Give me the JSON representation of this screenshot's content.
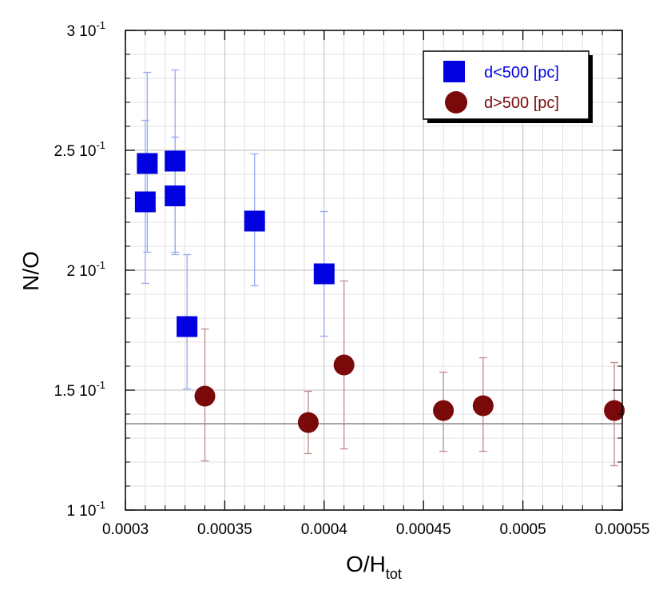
{
  "chart_data": {
    "type": "scatter",
    "xlabel": "O/H",
    "xlabel_sub": "tot",
    "ylabel": "N/O",
    "xlim": [
      0.0003,
      0.00055
    ],
    "ylim": [
      0.1,
      0.3
    ],
    "grid": true,
    "legend_position": "top-right",
    "x_ticks": [
      {
        "value": 0.0003,
        "label": "0.0003"
      },
      {
        "value": 0.00035,
        "label": "0.00035"
      },
      {
        "value": 0.0004,
        "label": "0.0004"
      },
      {
        "value": 0.00045,
        "label": "0.00045"
      },
      {
        "value": 0.0005,
        "label": "0.0005"
      },
      {
        "value": 0.00055,
        "label": "0.00055"
      }
    ],
    "y_ticks": [
      {
        "value": 0.1,
        "mantissa": "1",
        "exp": "-1"
      },
      {
        "value": 0.15,
        "mantissa": "1.5",
        "exp": "-1"
      },
      {
        "value": 0.2,
        "mantissa": "2",
        "exp": "-1"
      },
      {
        "value": 0.25,
        "mantissa": "2.5",
        "exp": "-1"
      },
      {
        "value": 0.3,
        "mantissa": "3",
        "exp": "-1"
      }
    ],
    "reference_line_y": 0.136,
    "series": [
      {
        "name": "d<500 [pc]",
        "marker": "square",
        "color": "#0000e0",
        "error_color": "#9aa8f0",
        "points": [
          {
            "x": 0.000311,
            "y": 0.2445,
            "err_lo": 0.2075,
            "err_hi": 0.2825
          },
          {
            "x": 0.00031,
            "y": 0.2285,
            "err_lo": 0.1945,
            "err_hi": 0.2625
          },
          {
            "x": 0.000325,
            "y": 0.2455,
            "err_lo": 0.2075,
            "err_hi": 0.2835
          },
          {
            "x": 0.000325,
            "y": 0.231,
            "err_lo": 0.2065,
            "err_hi": 0.2555
          },
          {
            "x": 0.000331,
            "y": 0.1765,
            "err_lo": 0.1505,
            "err_hi": 0.2065
          },
          {
            "x": 0.000365,
            "y": 0.2205,
            "err_lo": 0.1935,
            "err_hi": 0.2485
          },
          {
            "x": 0.0004,
            "y": 0.1985,
            "err_lo": 0.1725,
            "err_hi": 0.2245
          }
        ]
      },
      {
        "name": "d>500 [pc]",
        "marker": "circle",
        "color": "#7a0a0a",
        "error_color": "#c08a8a",
        "points": [
          {
            "x": 0.00034,
            "y": 0.1475,
            "err_lo": 0.1205,
            "err_hi": 0.1755
          },
          {
            "x": 0.000392,
            "y": 0.1365,
            "err_lo": 0.1235,
            "err_hi": 0.1495
          },
          {
            "x": 0.00041,
            "y": 0.1605,
            "err_lo": 0.1255,
            "err_hi": 0.1955
          },
          {
            "x": 0.00046,
            "y": 0.1415,
            "err_lo": 0.1245,
            "err_hi": 0.1575
          },
          {
            "x": 0.00048,
            "y": 0.1435,
            "err_lo": 0.1245,
            "err_hi": 0.1635
          },
          {
            "x": 0.000546,
            "y": 0.1415,
            "err_lo": 0.1185,
            "err_hi": 0.1615
          }
        ]
      }
    ]
  }
}
